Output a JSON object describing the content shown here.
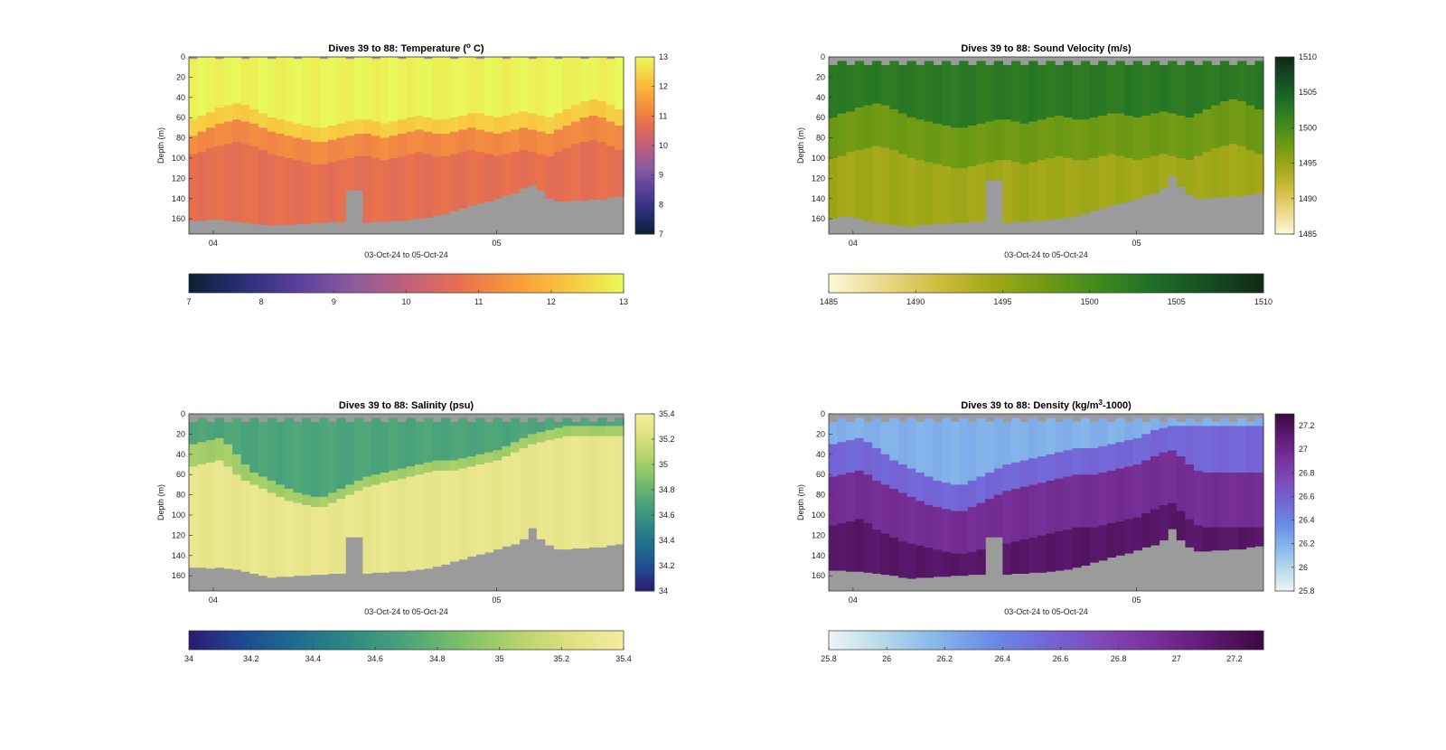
{
  "chart_data": [
    {
      "id": "temperature",
      "type": "heatmap",
      "title": "Dives 39 to 88: Temperature (",
      "title_sup": "o",
      "title_end": " C)",
      "ylabel": "Depth (m)",
      "xlabel": "03-Oct-24 to 05-Oct-24",
      "xticks": [
        "04",
        "05"
      ],
      "yticks": [
        0,
        20,
        40,
        60,
        80,
        100,
        120,
        140,
        160
      ],
      "ylim": [
        0,
        175
      ],
      "colorbar_ticks": [
        13,
        12,
        11,
        10,
        9,
        8,
        7
      ],
      "hcolorbar_ticks": [
        7,
        8,
        9,
        10,
        11,
        12,
        13
      ],
      "clim": [
        7,
        13
      ],
      "colormap": [
        "#0b1f33",
        "#2a2f7a",
        "#5a3f9e",
        "#8c5a9e",
        "#c0607e",
        "#e8704e",
        "#f89a3c",
        "#f8c840",
        "#e9f95a"
      ],
      "layers": [
        {
          "value": 12.9,
          "top": [
            0,
            0,
            0,
            0,
            0,
            0,
            0,
            0,
            0,
            0,
            0,
            0,
            0,
            0,
            0,
            0,
            0,
            0,
            0,
            0,
            0,
            0,
            0,
            0,
            0,
            0,
            0,
            0,
            0,
            0,
            0,
            0,
            0,
            0,
            0,
            0,
            0,
            0,
            0,
            0,
            0,
            0,
            0,
            0,
            0,
            0,
            0,
            0,
            0,
            0
          ]
        },
        {
          "value": 12.3,
          "top": [
            62,
            58,
            55,
            50,
            48,
            46,
            48,
            52,
            56,
            60,
            62,
            64,
            66,
            68,
            70,
            70,
            68,
            66,
            64,
            62,
            62,
            64,
            66,
            64,
            62,
            60,
            58,
            60,
            62,
            62,
            60,
            58,
            56,
            56,
            58,
            60,
            58,
            56,
            54,
            56,
            58,
            60,
            56,
            52,
            48,
            44,
            42,
            44,
            48,
            52
          ]
        },
        {
          "value": 11.2,
          "top": [
            78,
            74,
            70,
            66,
            64,
            62,
            64,
            66,
            70,
            74,
            76,
            78,
            80,
            82,
            84,
            84,
            82,
            80,
            78,
            76,
            76,
            78,
            80,
            78,
            76,
            74,
            72,
            74,
            76,
            76,
            74,
            72,
            70,
            72,
            74,
            76,
            74,
            72,
            70,
            72,
            74,
            76,
            72,
            68,
            64,
            60,
            58,
            60,
            64,
            68
          ]
        },
        {
          "value": 10.7,
          "top": [
            96,
            94,
            90,
            88,
            86,
            84,
            86,
            88,
            92,
            96,
            98,
            100,
            102,
            104,
            106,
            106,
            104,
            102,
            100,
            98,
            98,
            100,
            102,
            100,
            98,
            96,
            94,
            96,
            98,
            98,
            96,
            94,
            92,
            94,
            96,
            98,
            96,
            94,
            92,
            94,
            96,
            98,
            94,
            90,
            86,
            84,
            82,
            84,
            88,
            92
          ]
        }
      ],
      "bottom": [
        162,
        162,
        161,
        161,
        162,
        163,
        164,
        165,
        166,
        167,
        166,
        166,
        165,
        165,
        164,
        164,
        163,
        163,
        132,
        132,
        164,
        163,
        163,
        162,
        162,
        161,
        160,
        159,
        157,
        155,
        152,
        150,
        147,
        145,
        143,
        140,
        137,
        135,
        130,
        127,
        132,
        140,
        143,
        143,
        142,
        142,
        141,
        141,
        139,
        138
      ],
      "surface_gaps": false
    },
    {
      "id": "sound_velocity",
      "type": "heatmap",
      "title": "Dives 39 to 88: Sound Velocity (m/s)",
      "ylabel": "Depth (m)",
      "xlabel": "03-Oct-24 to 05-Oct-24",
      "xticks": [
        "04",
        "05"
      ],
      "yticks": [
        0,
        20,
        40,
        60,
        80,
        100,
        120,
        140,
        160
      ],
      "ylim": [
        0,
        175
      ],
      "colorbar_ticks": [
        1510,
        1505,
        1500,
        1495,
        1490,
        1485
      ],
      "hcolorbar_ticks": [
        1485,
        1490,
        1495,
        1500,
        1505,
        1510
      ],
      "clim": [
        1485,
        1510
      ],
      "colormap": [
        "#fdf8d8",
        "#ecd98a",
        "#cfbc40",
        "#a3a818",
        "#6f9a14",
        "#3f8a1e",
        "#1e6e26",
        "#164d22",
        "#0f2a16"
      ],
      "layers": [
        {
          "value": 1502.5,
          "top": [
            8,
            8,
            8,
            8,
            8,
            8,
            8,
            8,
            8,
            8,
            8,
            8,
            8,
            8,
            8,
            8,
            8,
            8,
            8,
            8,
            8,
            8,
            8,
            8,
            8,
            8,
            8,
            8,
            8,
            8,
            8,
            8,
            8,
            8,
            8,
            8,
            8,
            8,
            8,
            8,
            8,
            8,
            8,
            8,
            8,
            8,
            8,
            8,
            8,
            8
          ]
        },
        {
          "value": 1497.5,
          "top": [
            60,
            56,
            54,
            50,
            48,
            46,
            48,
            52,
            56,
            60,
            62,
            64,
            66,
            68,
            70,
            70,
            68,
            66,
            64,
            62,
            62,
            64,
            66,
            64,
            62,
            60,
            58,
            60,
            62,
            62,
            60,
            58,
            56,
            56,
            58,
            60,
            58,
            56,
            54,
            56,
            58,
            60,
            56,
            52,
            48,
            44,
            42,
            44,
            48,
            52
          ]
        },
        {
          "value": 1494.5,
          "top": [
            100,
            98,
            94,
            92,
            90,
            88,
            90,
            92,
            96,
            100,
            102,
            104,
            106,
            108,
            110,
            110,
            108,
            106,
            104,
            102,
            102,
            104,
            106,
            104,
            102,
            100,
            98,
            100,
            102,
            102,
            100,
            98,
            96,
            98,
            100,
            102,
            100,
            98,
            96,
            98,
            100,
            102,
            98,
            94,
            90,
            88,
            86,
            88,
            92,
            96
          ]
        }
      ],
      "bottom": [
        160,
        158,
        158,
        160,
        162,
        164,
        165,
        166,
        167,
        168,
        166,
        166,
        165,
        165,
        164,
        164,
        163,
        163,
        122,
        122,
        164,
        163,
        163,
        162,
        162,
        161,
        160,
        159,
        157,
        155,
        152,
        150,
        147,
        145,
        143,
        140,
        137,
        135,
        130,
        118,
        128,
        136,
        140,
        140,
        139,
        139,
        138,
        138,
        136,
        135
      ],
      "surface_gaps": true
    },
    {
      "id": "salinity",
      "type": "heatmap",
      "title": "Dives 39 to 88: Salinity (psu)",
      "ylabel": "Depth (m)",
      "xlabel": "03-Oct-24 to 05-Oct-24",
      "xticks": [
        "04",
        "05"
      ],
      "yticks": [
        0,
        20,
        40,
        60,
        80,
        100,
        120,
        140,
        160
      ],
      "ylim": [
        0,
        175
      ],
      "colorbar_ticks": [
        35.4,
        35.2,
        35,
        34.8,
        34.6,
        34.4,
        34.2,
        34
      ],
      "hcolorbar_ticks": [
        34,
        34.2,
        34.4,
        34.6,
        34.8,
        35,
        35.2,
        35.4
      ],
      "clim": [
        34,
        35.4
      ],
      "colormap": [
        "#2b1a72",
        "#1f4a92",
        "#1e6e8e",
        "#2f8a84",
        "#4ca47a",
        "#7cbf6a",
        "#b2d36a",
        "#dfe07e",
        "#f6eca0"
      ],
      "layers": [
        {
          "value": 34.7,
          "top": [
            8,
            8,
            8,
            8,
            8,
            8,
            8,
            8,
            8,
            8,
            8,
            8,
            8,
            8,
            8,
            8,
            8,
            8,
            8,
            8,
            8,
            8,
            8,
            8,
            8,
            8,
            8,
            8,
            8,
            8,
            8,
            8,
            8,
            8,
            8,
            8,
            8,
            8,
            8,
            8,
            8,
            8,
            8,
            8,
            8,
            8,
            8,
            8,
            8,
            8
          ]
        },
        {
          "value": 35.0,
          "top": [
            30,
            28,
            26,
            24,
            30,
            40,
            50,
            58,
            62,
            66,
            70,
            74,
            78,
            80,
            82,
            82,
            78,
            74,
            70,
            66,
            62,
            60,
            58,
            56,
            54,
            52,
            50,
            48,
            46,
            46,
            46,
            44,
            42,
            40,
            38,
            36,
            32,
            28,
            24,
            20,
            18,
            16,
            14,
            12,
            12,
            12,
            12,
            12,
            12,
            12
          ]
        },
        {
          "value": 35.3,
          "top": [
            52,
            50,
            48,
            46,
            52,
            60,
            66,
            70,
            74,
            78,
            82,
            86,
            88,
            90,
            92,
            92,
            88,
            84,
            80,
            76,
            72,
            70,
            68,
            66,
            64,
            62,
            60,
            58,
            56,
            56,
            56,
            54,
            52,
            50,
            48,
            46,
            42,
            38,
            34,
            30,
            28,
            26,
            24,
            22,
            22,
            22,
            22,
            22,
            22,
            22
          ]
        }
      ],
      "bottom": [
        152,
        152,
        153,
        152,
        153,
        154,
        156,
        158,
        160,
        162,
        161,
        161,
        160,
        160,
        159,
        159,
        158,
        158,
        122,
        122,
        158,
        157,
        157,
        156,
        156,
        155,
        154,
        153,
        151,
        149,
        146,
        144,
        141,
        139,
        137,
        134,
        131,
        129,
        124,
        113,
        124,
        130,
        134,
        134,
        133,
        133,
        132,
        132,
        130,
        129
      ],
      "surface_gaps": true
    },
    {
      "id": "density",
      "type": "heatmap",
      "title": "Dives 39 to 88: Density (kg/m",
      "title_sup": "3",
      "title_end": "-1000)",
      "ylabel": "Depth (m)",
      "xlabel": "03-Oct-24 to 05-Oct-24",
      "xticks": [
        "04",
        "05"
      ],
      "yticks": [
        0,
        20,
        40,
        60,
        80,
        100,
        120,
        140,
        160
      ],
      "ylim": [
        0,
        175
      ],
      "colorbar_ticks": [
        27.2,
        27,
        26.8,
        26.6,
        26.4,
        26.2,
        26,
        25.8
      ],
      "hcolorbar_ticks": [
        25.8,
        26,
        26.2,
        26.4,
        26.6,
        26.8,
        27,
        27.2
      ],
      "clim": [
        25.8,
        27.3
      ],
      "colormap": [
        "#eef4f6",
        "#b6d8ea",
        "#86b6ea",
        "#6a8ce6",
        "#7466d8",
        "#7f4ab8",
        "#78309a",
        "#5e1a72",
        "#3b0a3e"
      ],
      "layers": [
        {
          "value": 26.2,
          "top": [
            8,
            8,
            8,
            8,
            8,
            8,
            8,
            8,
            8,
            8,
            8,
            8,
            8,
            8,
            8,
            8,
            8,
            8,
            8,
            8,
            8,
            8,
            8,
            8,
            8,
            8,
            8,
            8,
            8,
            8,
            8,
            8,
            8,
            8,
            8,
            8,
            8,
            8,
            8,
            8,
            8,
            8,
            8,
            8,
            8,
            8,
            8,
            8,
            8,
            8
          ]
        },
        {
          "value": 26.55,
          "top": [
            30,
            28,
            26,
            24,
            28,
            34,
            40,
            46,
            50,
            54,
            58,
            62,
            66,
            68,
            70,
            70,
            66,
            62,
            58,
            54,
            50,
            48,
            46,
            44,
            42,
            40,
            38,
            36,
            34,
            34,
            34,
            32,
            30,
            28,
            26,
            24,
            20,
            16,
            14,
            12,
            12,
            12,
            12,
            12,
            12,
            12,
            12,
            12,
            12,
            12
          ]
        },
        {
          "value": 26.95,
          "top": [
            62,
            60,
            58,
            56,
            60,
            66,
            70,
            74,
            78,
            82,
            86,
            90,
            92,
            94,
            96,
            96,
            92,
            88,
            84,
            80,
            76,
            74,
            72,
            70,
            68,
            66,
            64,
            62,
            60,
            60,
            60,
            58,
            56,
            54,
            52,
            50,
            46,
            42,
            38,
            36,
            42,
            50,
            56,
            58,
            58,
            58,
            58,
            58,
            58,
            58
          ]
        },
        {
          "value": 27.15,
          "top": [
            110,
            108,
            106,
            104,
            108,
            114,
            118,
            122,
            126,
            128,
            130,
            132,
            134,
            136,
            138,
            138,
            136,
            134,
            132,
            130,
            128,
            126,
            124,
            122,
            120,
            118,
            116,
            114,
            112,
            112,
            112,
            110,
            108,
            106,
            104,
            102,
            98,
            94,
            90,
            88,
            96,
            104,
            110,
            112,
            112,
            112,
            112,
            112,
            112,
            112
          ]
        }
      ],
      "bottom": [
        155,
        155,
        156,
        156,
        157,
        158,
        159,
        160,
        162,
        163,
        162,
        162,
        161,
        161,
        160,
        160,
        159,
        159,
        122,
        122,
        159,
        158,
        158,
        157,
        157,
        156,
        155,
        154,
        152,
        150,
        147,
        145,
        142,
        140,
        138,
        135,
        132,
        130,
        125,
        114,
        125,
        132,
        136,
        136,
        135,
        135,
        134,
        134,
        132,
        131
      ],
      "surface_gaps": true
    }
  ]
}
